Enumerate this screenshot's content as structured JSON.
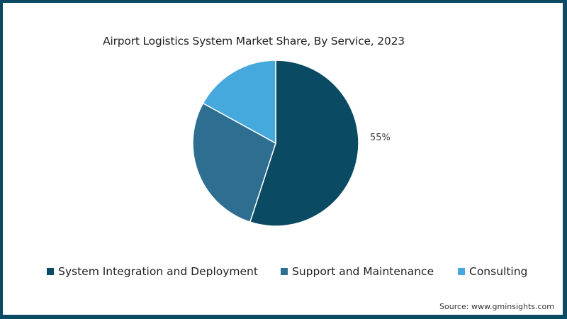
{
  "title": "Airport Logistics System Market Share, By Service, 2023",
  "source": "Source: www.gminsights.com",
  "chart_data": {
    "type": "pie",
    "title": "Airport Logistics System Market Share, By Service, 2023",
    "categories": [
      "System Integration and Deployment",
      "Support and Maintenance",
      "Consulting"
    ],
    "values": [
      55,
      28,
      17
    ],
    "colors": [
      "#0b4a63",
      "#2e6f91",
      "#46a9dd"
    ],
    "data_labels": [
      "55%",
      "",
      ""
    ],
    "legend_position": "bottom",
    "start_angle": "12 o'clock, clockwise"
  },
  "legend": [
    {
      "label": "System Integration and Deployment",
      "color": "#0b4a63"
    },
    {
      "label": "Support and Maintenance",
      "color": "#2e6f91"
    },
    {
      "label": "Consulting",
      "color": "#46a9dd"
    }
  ],
  "label_55": "55%"
}
